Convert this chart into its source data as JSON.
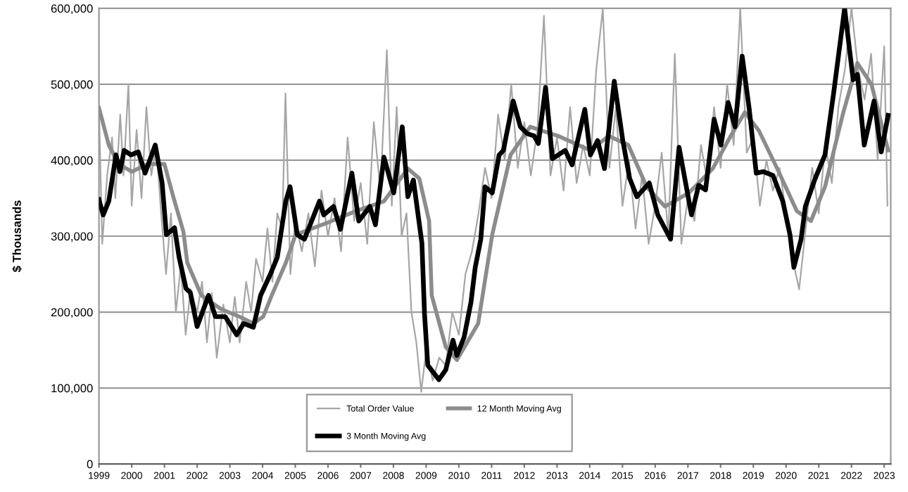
{
  "chart_data": {
    "type": "line",
    "ylabel": "$ Thousands",
    "xlim": [
      1999,
      2023.2
    ],
    "xticks": [
      1999,
      2000,
      2001,
      2002,
      2003,
      2004,
      2005,
      2006,
      2007,
      2008,
      2009,
      2010,
      2011,
      2012,
      2013,
      2014,
      2015,
      2016,
      2017,
      2018,
      2019,
      2020,
      2021,
      2022,
      2023
    ],
    "ylim": [
      0,
      600000
    ],
    "yticks": [
      0,
      {
        "value": 100000,
        "label": "100,000"
      },
      {
        "value": 200000,
        "label": "200,000"
      },
      {
        "value": 300000,
        "label": "300,000"
      },
      {
        "value": 400000,
        "label": "400,000"
      },
      {
        "value": 500000,
        "label": "500,000"
      },
      {
        "value": 600000,
        "label": "600,000"
      }
    ],
    "grid": "y",
    "legend": "bottom",
    "marker": "none",
    "line_style": "solid",
    "series": [
      {
        "name": "Total Order Value",
        "color": "#a6a6a6",
        "x": [
          1999.0,
          1999.1,
          1999.25,
          1999.4,
          1999.5,
          1999.65,
          1999.75,
          1999.9,
          2000.0,
          2000.15,
          2000.3,
          2000.45,
          2000.6,
          2000.75,
          2000.9,
          2001.05,
          2001.2,
          2001.35,
          2001.5,
          2001.65,
          2001.8,
          2002.0,
          2002.15,
          2002.3,
          2002.45,
          2002.6,
          2002.8,
          2003.0,
          2003.15,
          2003.3,
          2003.5,
          2003.65,
          2003.8,
          2004.0,
          2004.15,
          2004.3,
          2004.45,
          2004.6,
          2004.7,
          2004.85,
          2005.0,
          2005.2,
          2005.4,
          2005.6,
          2005.8,
          2006.0,
          2006.2,
          2006.4,
          2006.6,
          2006.8,
          2007.0,
          2007.2,
          2007.4,
          2007.6,
          2007.8,
          2007.95,
          2008.1,
          2008.25,
          2008.4,
          2008.55,
          2008.7,
          2008.85,
          2009.0,
          2009.2,
          2009.4,
          2009.6,
          2009.8,
          2010.0,
          2010.2,
          2010.4,
          2010.6,
          2010.8,
          2011.0,
          2011.2,
          2011.4,
          2011.6,
          2011.8,
          2012.0,
          2012.2,
          2012.4,
          2012.6,
          2012.8,
          2013.0,
          2013.2,
          2013.4,
          2013.6,
          2013.8,
          2014.0,
          2014.2,
          2014.4,
          2014.6,
          2014.8,
          2015.0,
          2015.2,
          2015.4,
          2015.6,
          2015.8,
          2016.0,
          2016.2,
          2016.4,
          2016.6,
          2016.8,
          2017.0,
          2017.2,
          2017.4,
          2017.6,
          2017.8,
          2018.0,
          2018.2,
          2018.4,
          2018.6,
          2018.8,
          2019.0,
          2019.2,
          2019.4,
          2019.6,
          2019.8,
          2020.0,
          2020.2,
          2020.4,
          2020.6,
          2020.8,
          2021.0,
          2021.2,
          2021.4,
          2021.6,
          2021.8,
          2022.0,
          2022.2,
          2022.4,
          2022.6,
          2022.8,
          2023.0,
          2023.1
        ],
        "values": [
          470000,
          290000,
          380000,
          430000,
          350000,
          460000,
          380000,
          500000,
          340000,
          440000,
          350000,
          470000,
          380000,
          420000,
          330000,
          250000,
          330000,
          200000,
          260000,
          170000,
          230000,
          200000,
          240000,
          160000,
          225000,
          140000,
          210000,
          160000,
          220000,
          160000,
          240000,
          200000,
          270000,
          240000,
          310000,
          240000,
          330000,
          310000,
          488000,
          250000,
          320000,
          280000,
          330000,
          260000,
          360000,
          300000,
          350000,
          280000,
          430000,
          320000,
          370000,
          290000,
          450000,
          360000,
          545000,
          340000,
          470000,
          300000,
          330000,
          200000,
          160000,
          95000,
          150000,
          110000,
          140000,
          130000,
          200000,
          170000,
          250000,
          280000,
          330000,
          390000,
          350000,
          460000,
          400000,
          500000,
          390000,
          450000,
          380000,
          440000,
          590000,
          380000,
          430000,
          360000,
          470000,
          370000,
          420000,
          380000,
          520000,
          600000,
          390000,
          470000,
          340000,
          400000,
          310000,
          380000,
          290000,
          340000,
          410000,
          300000,
          540000,
          290000,
          350000,
          320000,
          420000,
          370000,
          470000,
          390000,
          500000,
          420000,
          600000,
          410000,
          430000,
          340000,
          400000,
          360000,
          390000,
          330000,
          270000,
          230000,
          310000,
          390000,
          330000,
          420000,
          370000,
          470000,
          520000,
          600000,
          520000,
          480000,
          540000,
          400000,
          550000,
          340000
        ]
      },
      {
        "name": "12 Month Moving Avg",
        "color": "#8c8c8c",
        "x": [
          1999.0,
          1999.3,
          1999.6,
          2000.0,
          2000.5,
          2001.0,
          2001.27,
          2001.58,
          2001.7,
          2002.13,
          2002.73,
          2003.29,
          2003.72,
          2004.02,
          2004.28,
          2004.71,
          2005.01,
          2006.0,
          2006.85,
          2007.71,
          2008.44,
          2008.79,
          2009.09,
          2009.17,
          2009.6,
          2009.94,
          2010.59,
          2011.02,
          2011.58,
          2012.18,
          2013.03,
          2014.02,
          2014.58,
          2015.18,
          2015.74,
          2016.3,
          2017.03,
          2017.76,
          2018.31,
          2018.74,
          2019.17,
          2019.73,
          2020.33,
          2020.76,
          2021.19,
          2021.75,
          2022.18,
          2022.61,
          2023.12
        ],
        "values": [
          469000,
          420000,
          395000,
          385000,
          395000,
          395000,
          352000,
          306000,
          265000,
          222000,
          204000,
          194000,
          185000,
          194000,
          222000,
          265000,
          302000,
          318000,
          333000,
          346000,
          389000,
          376000,
          320000,
          222000,
          154000,
          137000,
          185000,
          302000,
          407000,
          444000,
          432000,
          413000,
          432000,
          420000,
          365000,
          339000,
          357000,
          389000,
          432000,
          463000,
          439000,
          389000,
          333000,
          320000,
          365000,
          463000,
          528000,
          500000,
          413000
        ]
      },
      {
        "name": "3 Month Moving Avg",
        "color": "#000000",
        "x": [
          1999.0,
          1999.13,
          1999.3,
          1999.52,
          1999.64,
          1999.77,
          1999.98,
          2000.2,
          2000.41,
          2000.72,
          2000.93,
          2001.06,
          2001.31,
          2001.45,
          2001.66,
          2001.79,
          2002.0,
          2002.35,
          2002.56,
          2002.86,
          2003.21,
          2003.42,
          2003.72,
          2003.94,
          2004.24,
          2004.45,
          2004.71,
          2004.84,
          2005.06,
          2005.28,
          2005.74,
          2005.87,
          2006.17,
          2006.38,
          2006.73,
          2006.94,
          2007.28,
          2007.45,
          2007.71,
          2008.01,
          2008.27,
          2008.44,
          2008.61,
          2008.87,
          2008.95,
          2009.05,
          2009.39,
          2009.6,
          2009.82,
          2009.94,
          2010.16,
          2010.37,
          2010.5,
          2010.67,
          2010.8,
          2011.02,
          2011.23,
          2011.36,
          2011.66,
          2011.88,
          2012.09,
          2012.3,
          2012.43,
          2012.65,
          2012.86,
          2013.25,
          2013.46,
          2013.85,
          2014.02,
          2014.24,
          2014.45,
          2014.75,
          2015.01,
          2015.22,
          2015.44,
          2015.82,
          2016.08,
          2016.47,
          2016.73,
          2017.11,
          2017.33,
          2017.54,
          2017.8,
          2018.01,
          2018.23,
          2018.44,
          2018.66,
          2018.87,
          2019.09,
          2019.3,
          2019.6,
          2019.9,
          2020.12,
          2020.24,
          2020.46,
          2020.59,
          2020.89,
          2021.19,
          2021.45,
          2021.79,
          2022.05,
          2022.18,
          2022.39,
          2022.69,
          2022.91,
          2023.12
        ],
        "values": [
          348000,
          328000,
          346000,
          407000,
          385000,
          413000,
          407000,
          411000,
          383000,
          420000,
          370000,
          302000,
          311000,
          272000,
          231000,
          226000,
          181000,
          222000,
          194000,
          194000,
          170000,
          185000,
          180000,
          222000,
          250000,
          272000,
          346000,
          365000,
          302000,
          296000,
          346000,
          328000,
          339000,
          309000,
          383000,
          320000,
          339000,
          315000,
          404000,
          357000,
          444000,
          352000,
          374000,
          291000,
          198000,
          130000,
          111000,
          124000,
          163000,
          143000,
          167000,
          213000,
          259000,
          296000,
          365000,
          357000,
          407000,
          413000,
          478000,
          444000,
          435000,
          432000,
          422000,
          496000,
          402000,
          413000,
          394000,
          467000,
          407000,
          426000,
          389000,
          504000,
          426000,
          376000,
          352000,
          370000,
          328000,
          296000,
          417000,
          328000,
          367000,
          361000,
          454000,
          420000,
          476000,
          444000,
          537000,
          469000,
          383000,
          385000,
          380000,
          346000,
          302000,
          259000,
          296000,
          339000,
          376000,
          407000,
          487000,
          600000,
          506000,
          513000,
          420000,
          478000,
          411000,
          459000
        ]
      }
    ]
  }
}
